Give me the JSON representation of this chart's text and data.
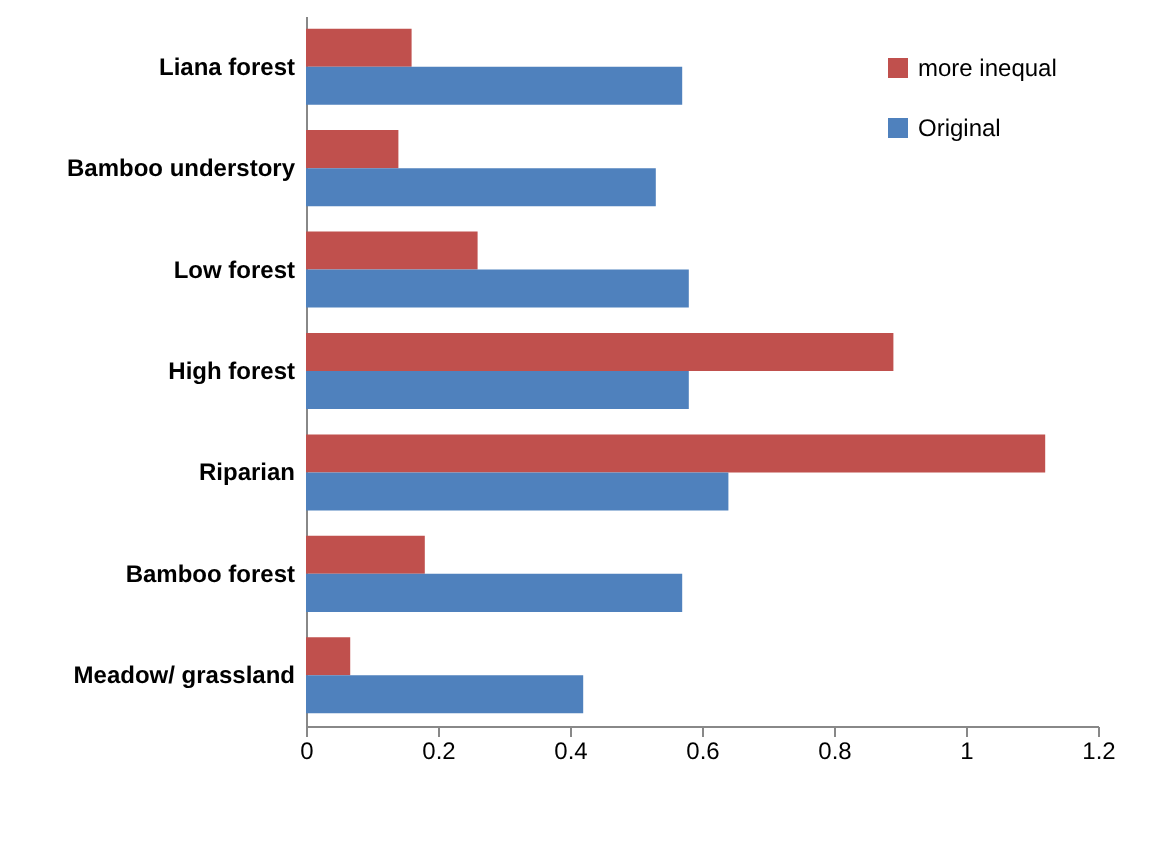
{
  "chart_data": {
    "type": "bar",
    "orientation": "horizontal",
    "categories": [
      "Liana forest",
      "Bamboo understory",
      "Low forest",
      "High forest",
      "Riparian",
      "Bamboo forest",
      "Meadow/ grassland"
    ],
    "series": [
      {
        "name": "more inequal",
        "color": "#c0504d",
        "values": [
          0.16,
          0.14,
          0.26,
          0.89,
          1.12,
          0.18,
          0.067
        ]
      },
      {
        "name": "Original",
        "color": "#4f81bd",
        "values": [
          0.57,
          0.53,
          0.58,
          0.58,
          0.64,
          0.57,
          0.42
        ]
      }
    ],
    "xlim": [
      0,
      1.2
    ],
    "xticks": [
      0,
      0.2,
      0.4,
      0.6,
      0.8,
      1,
      1.2
    ],
    "grid": false,
    "legend": "top right"
  }
}
